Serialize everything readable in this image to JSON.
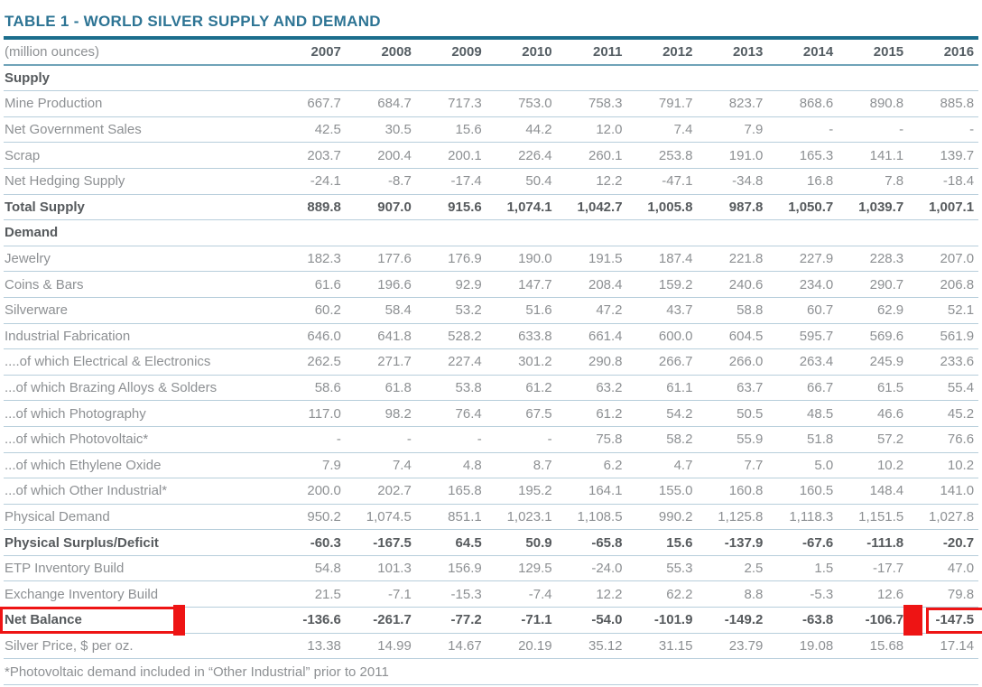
{
  "title": "TABLE 1 - WORLD SILVER SUPPLY AND DEMAND",
  "units_label": "(million ounces)",
  "years": [
    "2007",
    "2008",
    "2009",
    "2010",
    "2011",
    "2012",
    "2013",
    "2014",
    "2015",
    "2016"
  ],
  "footnote": "*Photovoltaic demand included in “Other Industrial” prior to 2011",
  "colors": {
    "title_text": "#2d7494",
    "header_rule": "#1c6e8d",
    "header_underline": "#6fa3b8",
    "row_line": "#b7cedb",
    "body_text": "#8d9093",
    "bold_text": "#565a5d",
    "highlight_red": "#ee1414"
  },
  "table": {
    "rows": [
      {
        "label": "Supply",
        "style": "section",
        "values": [
          "",
          "",
          "",
          "",
          "",
          "",
          "",
          "",
          "",
          ""
        ]
      },
      {
        "label": "Mine Production",
        "style": "data",
        "values": [
          "667.7",
          "684.7",
          "717.3",
          "753.0",
          "758.3",
          "791.7",
          "823.7",
          "868.6",
          "890.8",
          "885.8"
        ]
      },
      {
        "label": "Net Government Sales",
        "style": "data",
        "values": [
          "42.5",
          "30.5",
          "15.6",
          "44.2",
          "12.0",
          "7.4",
          "7.9",
          "-",
          "-",
          "-"
        ]
      },
      {
        "label": "Scrap",
        "style": "data",
        "values": [
          "203.7",
          "200.4",
          "200.1",
          "226.4",
          "260.1",
          "253.8",
          "191.0",
          "165.3",
          "141.1",
          "139.7"
        ]
      },
      {
        "label": "Net Hedging Supply",
        "style": "data",
        "values": [
          "-24.1",
          "-8.7",
          "-17.4",
          "50.4",
          "12.2",
          "-47.1",
          "-34.8",
          "16.8",
          "7.8",
          "-18.4"
        ]
      },
      {
        "label": "Total Supply",
        "style": "bold",
        "values": [
          "889.8",
          "907.0",
          "915.6",
          "1,074.1",
          "1,042.7",
          "1,005.8",
          "987.8",
          "1,050.7",
          "1,039.7",
          "1,007.1"
        ]
      },
      {
        "label": "Demand",
        "style": "section",
        "values": [
          "",
          "",
          "",
          "",
          "",
          "",
          "",
          "",
          "",
          ""
        ]
      },
      {
        "label": "Jewelry",
        "style": "data",
        "values": [
          "182.3",
          "177.6",
          "176.9",
          "190.0",
          "191.5",
          "187.4",
          "221.8",
          "227.9",
          "228.3",
          "207.0"
        ]
      },
      {
        "label": "Coins & Bars",
        "style": "data",
        "values": [
          "61.6",
          "196.6",
          "92.9",
          "147.7",
          "208.4",
          "159.2",
          "240.6",
          "234.0",
          "290.7",
          "206.8"
        ]
      },
      {
        "label": "Silverware",
        "style": "data",
        "values": [
          "60.2",
          "58.4",
          "53.2",
          "51.6",
          "47.2",
          "43.7",
          "58.8",
          "60.7",
          "62.9",
          "52.1"
        ]
      },
      {
        "label": "Industrial Fabrication",
        "style": "data",
        "values": [
          "646.0",
          "641.8",
          "528.2",
          "633.8",
          "661.4",
          "600.0",
          "604.5",
          "595.7",
          "569.6",
          "561.9"
        ]
      },
      {
        "label": "....of which Electrical & Electronics",
        "style": "data",
        "values": [
          "262.5",
          "271.7",
          "227.4",
          "301.2",
          "290.8",
          "266.7",
          "266.0",
          "263.4",
          "245.9",
          "233.6"
        ]
      },
      {
        "label": "...of which Brazing Alloys & Solders",
        "style": "data",
        "values": [
          "58.6",
          "61.8",
          "53.8",
          "61.2",
          "63.2",
          "61.1",
          "63.7",
          "66.7",
          "61.5",
          "55.4"
        ]
      },
      {
        "label": "...of which Photography",
        "style": "data",
        "values": [
          "117.0",
          "98.2",
          "76.4",
          "67.5",
          "61.2",
          "54.2",
          "50.5",
          "48.5",
          "46.6",
          "45.2"
        ]
      },
      {
        "label": "...of which Photovoltaic*",
        "style": "data",
        "values": [
          "-",
          "-",
          "-",
          "-",
          "75.8",
          "58.2",
          "55.9",
          "51.8",
          "57.2",
          "76.6"
        ]
      },
      {
        "label": "...of which Ethylene Oxide",
        "style": "data",
        "values": [
          "7.9",
          "7.4",
          "4.8",
          "8.7",
          "6.2",
          "4.7",
          "7.7",
          "5.0",
          "10.2",
          "10.2"
        ]
      },
      {
        "label": "...of which Other Industrial*",
        "style": "data",
        "values": [
          "200.0",
          "202.7",
          "165.8",
          "195.2",
          "164.1",
          "155.0",
          "160.8",
          "160.5",
          "148.4",
          "141.0"
        ]
      },
      {
        "label": "Physical Demand",
        "style": "data",
        "values": [
          "950.2",
          "1,074.5",
          "851.1",
          "1,023.1",
          "1,108.5",
          "990.2",
          "1,125.8",
          "1,118.3",
          "1,151.5",
          "1,027.8"
        ]
      },
      {
        "label": "Physical Surplus/Deficit",
        "style": "bold",
        "values": [
          "-60.3",
          "-167.5",
          "64.5",
          "50.9",
          "-65.8",
          "15.6",
          "-137.9",
          "-67.6",
          "-111.8",
          "-20.7"
        ]
      },
      {
        "label": "ETP Inventory Build",
        "style": "data",
        "values": [
          "54.8",
          "101.3",
          "156.9",
          "129.5",
          "-24.0",
          "55.3",
          "2.5",
          "1.5",
          "-17.7",
          "47.0"
        ]
      },
      {
        "label": "Exchange Inventory Build",
        "style": "data",
        "values": [
          "21.5",
          "-7.1",
          "-15.3",
          "-7.4",
          "12.2",
          "62.2",
          "8.8",
          "-5.3",
          "12.6",
          "79.8"
        ]
      },
      {
        "label": "Net Balance",
        "style": "bold",
        "annotate": true,
        "values": [
          "-136.6",
          "-261.7",
          "-77.2",
          "-71.1",
          "-54.0",
          "-101.9",
          "-149.2",
          "-63.8",
          "-106.7",
          "-147.5"
        ]
      },
      {
        "label": "Silver Price, $ per oz.",
        "style": "data",
        "values": [
          "13.38",
          "14.99",
          "14.67",
          "20.19",
          "35.12",
          "31.15",
          "23.79",
          "19.08",
          "15.68",
          "17.14"
        ]
      }
    ]
  }
}
